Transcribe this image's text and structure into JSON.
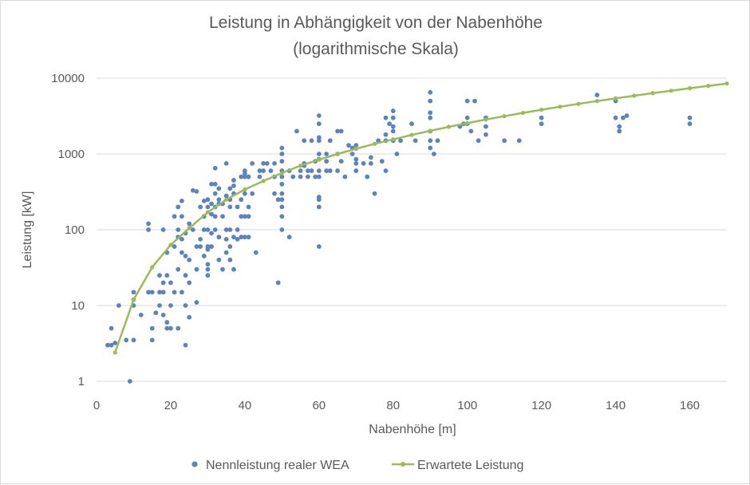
{
  "chart_data": {
    "type": "scatter",
    "title": "Leistung in Abhängigkeit von der Nabenhöhe",
    "subtitle": "(logarithmische Skala)",
    "xlabel": "Nabenhöhe [m]",
    "ylabel": "Leistung [kW]",
    "xlim": [
      0,
      170
    ],
    "ylim": [
      1,
      10000
    ],
    "yscale": "log",
    "x_ticks": [
      "0",
      "20",
      "40",
      "60",
      "80",
      "100",
      "120",
      "140",
      "160"
    ],
    "y_ticks": [
      "1",
      "10",
      "100",
      "1000",
      "10000"
    ],
    "grid": "horizontal",
    "legend_position": "bottom",
    "colors": {
      "scatter": "#5b83bd",
      "line": "#9bbb59",
      "grid": "#d9d9d9",
      "text": "#595959"
    },
    "series": [
      {
        "name": "Nennleistung realer WEA",
        "kind": "scatter",
        "points": [
          [
            3,
            3
          ],
          [
            4,
            5
          ],
          [
            4,
            3
          ],
          [
            5,
            3.2
          ],
          [
            6,
            10
          ],
          [
            8,
            3.5
          ],
          [
            9,
            1
          ],
          [
            10,
            15
          ],
          [
            10,
            12
          ],
          [
            10,
            10
          ],
          [
            10,
            3.5
          ],
          [
            12,
            7.5
          ],
          [
            14,
            120
          ],
          [
            14,
            100
          ],
          [
            14,
            15
          ],
          [
            15,
            15
          ],
          [
            15,
            5
          ],
          [
            15,
            3.5
          ],
          [
            16,
            8
          ],
          [
            17,
            25
          ],
          [
            17,
            15
          ],
          [
            17,
            10
          ],
          [
            18,
            100
          ],
          [
            18,
            20
          ],
          [
            18,
            15
          ],
          [
            18,
            7.5
          ],
          [
            19,
            5
          ],
          [
            19,
            50
          ],
          [
            19,
            25
          ],
          [
            19,
            6
          ],
          [
            20,
            20
          ],
          [
            20,
            10
          ],
          [
            20,
            5
          ],
          [
            21,
            150
          ],
          [
            21,
            60
          ],
          [
            21,
            15
          ],
          [
            22,
            200
          ],
          [
            22,
            100
          ],
          [
            22,
            80
          ],
          [
            22,
            30
          ],
          [
            22,
            5
          ],
          [
            23,
            240
          ],
          [
            23,
            150
          ],
          [
            23,
            75
          ],
          [
            23,
            50
          ],
          [
            23,
            15
          ],
          [
            24,
            90
          ],
          [
            24,
            45
          ],
          [
            24,
            25
          ],
          [
            24,
            10
          ],
          [
            24,
            3
          ],
          [
            25,
            120
          ],
          [
            25,
            40
          ],
          [
            25,
            20
          ],
          [
            25,
            7
          ],
          [
            26,
            330
          ],
          [
            26,
            100
          ],
          [
            27,
            320
          ],
          [
            27,
            60
          ],
          [
            27,
            30
          ],
          [
            27,
            11
          ],
          [
            28,
            200
          ],
          [
            28,
            75
          ],
          [
            28,
            60
          ],
          [
            29,
            240
          ],
          [
            29,
            150
          ],
          [
            29,
            100
          ],
          [
            29,
            45
          ],
          [
            30,
            250
          ],
          [
            30,
            200
          ],
          [
            30,
            100
          ],
          [
            30,
            60
          ],
          [
            30,
            55
          ],
          [
            30,
            35
          ],
          [
            30,
            30
          ],
          [
            30,
            25
          ],
          [
            31,
            400
          ],
          [
            31,
            220
          ],
          [
            31,
            160
          ],
          [
            31,
            90
          ],
          [
            31,
            60
          ],
          [
            32,
            650
          ],
          [
            32,
            400
          ],
          [
            32,
            300
          ],
          [
            32,
            200
          ],
          [
            32,
            150
          ],
          [
            32,
            100
          ],
          [
            33,
            350
          ],
          [
            33,
            250
          ],
          [
            33,
            220
          ],
          [
            33,
            80
          ],
          [
            33,
            40
          ],
          [
            34,
            220
          ],
          [
            34,
            150
          ],
          [
            34,
            30
          ],
          [
            35,
            750
          ],
          [
            35,
            280
          ],
          [
            35,
            100
          ],
          [
            35,
            75
          ],
          [
            35,
            50
          ],
          [
            36,
            350
          ],
          [
            36,
            250
          ],
          [
            36,
            200
          ],
          [
            36,
            100
          ],
          [
            36,
            60
          ],
          [
            36,
            40
          ],
          [
            37,
            450
          ],
          [
            37,
            380
          ],
          [
            37,
            300
          ],
          [
            37,
            80
          ],
          [
            37,
            30
          ],
          [
            38,
            200
          ],
          [
            38,
            100
          ],
          [
            38,
            75
          ],
          [
            39,
            500
          ],
          [
            39,
            250
          ],
          [
            39,
            150
          ],
          [
            39,
            80
          ],
          [
            40,
            600
          ],
          [
            40,
            550
          ],
          [
            40,
            500
          ],
          [
            40,
            300
          ],
          [
            40,
            150
          ],
          [
            40,
            80
          ],
          [
            41,
            500
          ],
          [
            41,
            200
          ],
          [
            41,
            150
          ],
          [
            41,
            80
          ],
          [
            42,
            750
          ],
          [
            42,
            300
          ],
          [
            43,
            50
          ],
          [
            44,
            600
          ],
          [
            44,
            500
          ],
          [
            45,
            750
          ],
          [
            45,
            600
          ],
          [
            46,
            750
          ],
          [
            47,
            600
          ],
          [
            48,
            750
          ],
          [
            48,
            500
          ],
          [
            48,
            300
          ],
          [
            49,
            20
          ],
          [
            49,
            250
          ],
          [
            50,
            1200
          ],
          [
            50,
            1000
          ],
          [
            50,
            800
          ],
          [
            50,
            600
          ],
          [
            50,
            500
          ],
          [
            50,
            400
          ],
          [
            50,
            300
          ],
          [
            50,
            250
          ],
          [
            50,
            200
          ],
          [
            50,
            150
          ],
          [
            50,
            100
          ],
          [
            52,
            80
          ],
          [
            52,
            600
          ],
          [
            53,
            500
          ],
          [
            54,
            2000
          ],
          [
            55,
            600
          ],
          [
            55,
            500
          ],
          [
            56,
            1500
          ],
          [
            56,
            750
          ],
          [
            56,
            700
          ],
          [
            57,
            600
          ],
          [
            57,
            500
          ],
          [
            58,
            1500
          ],
          [
            58,
            600
          ],
          [
            59,
            800
          ],
          [
            59,
            500
          ],
          [
            60,
            3200
          ],
          [
            60,
            2500
          ],
          [
            60,
            1650
          ],
          [
            60,
            1500
          ],
          [
            60,
            1000
          ],
          [
            60,
            850
          ],
          [
            60,
            600
          ],
          [
            60,
            500
          ],
          [
            60,
            270
          ],
          [
            60,
            250
          ],
          [
            60,
            200
          ],
          [
            60,
            60
          ],
          [
            62,
            1000
          ],
          [
            62,
            800
          ],
          [
            62,
            600
          ],
          [
            63,
            1500
          ],
          [
            63,
            600
          ],
          [
            65,
            2000
          ],
          [
            65,
            1000
          ],
          [
            65,
            600
          ],
          [
            66,
            2000
          ],
          [
            66,
            800
          ],
          [
            67,
            500
          ],
          [
            68,
            1300
          ],
          [
            69,
            1000
          ],
          [
            69,
            1200
          ],
          [
            70,
            1300
          ],
          [
            70,
            850
          ],
          [
            70,
            750
          ],
          [
            70,
            600
          ],
          [
            72,
            750
          ],
          [
            73,
            500
          ],
          [
            74,
            900
          ],
          [
            74,
            750
          ],
          [
            75,
            300
          ],
          [
            76,
            1500
          ],
          [
            77,
            800
          ],
          [
            78,
            3000
          ],
          [
            78,
            1800
          ],
          [
            78,
            1500
          ],
          [
            78,
            600
          ],
          [
            79,
            2500
          ],
          [
            80,
            3700
          ],
          [
            80,
            3000
          ],
          [
            80,
            2300
          ],
          [
            80,
            2000
          ],
          [
            80,
            1500
          ],
          [
            81,
            1000
          ],
          [
            82,
            1500
          ],
          [
            85,
            2500
          ],
          [
            86,
            1500
          ],
          [
            90,
            6500
          ],
          [
            90,
            5000
          ],
          [
            90,
            3500
          ],
          [
            90,
            3000
          ],
          [
            90,
            2000
          ],
          [
            90,
            1500
          ],
          [
            90,
            1200
          ],
          [
            91,
            1000
          ],
          [
            92,
            1500
          ],
          [
            98,
            2300
          ],
          [
            99,
            2500
          ],
          [
            100,
            5000
          ],
          [
            100,
            3000
          ],
          [
            100,
            2500
          ],
          [
            101,
            2000
          ],
          [
            102,
            5000
          ],
          [
            103,
            1500
          ],
          [
            105,
            3000
          ],
          [
            105,
            2300
          ],
          [
            105,
            1800
          ],
          [
            110,
            1500
          ],
          [
            114,
            1500
          ],
          [
            120,
            3000
          ],
          [
            120,
            2500
          ],
          [
            135,
            6000
          ],
          [
            140,
            5000
          ],
          [
            140,
            3000
          ],
          [
            141,
            2300
          ],
          [
            141,
            2000
          ],
          [
            142,
            3000
          ],
          [
            143,
            3200
          ],
          [
            160,
            3000
          ],
          [
            160,
            2500
          ]
        ]
      },
      {
        "name": "Erwartete Leistung",
        "kind": "line",
        "x": [
          5,
          10,
          15,
          20,
          25,
          30,
          35,
          40,
          45,
          50,
          55,
          60,
          65,
          70,
          75,
          80,
          85,
          90,
          95,
          100,
          105,
          110,
          115,
          120,
          125,
          130,
          135,
          140,
          145,
          150,
          155,
          160,
          165,
          170
        ],
        "y": [
          2.4,
          12,
          32,
          63,
          105,
          170,
          250,
          340,
          440,
          560,
          700,
          840,
          1000,
          1170,
          1360,
          1560,
          1780,
          2020,
          2280,
          2550,
          2850,
          3150,
          3480,
          3830,
          4200,
          4580,
          4990,
          5420,
          5870,
          6350,
          6840,
          7370,
          7920,
          8500
        ]
      }
    ]
  }
}
